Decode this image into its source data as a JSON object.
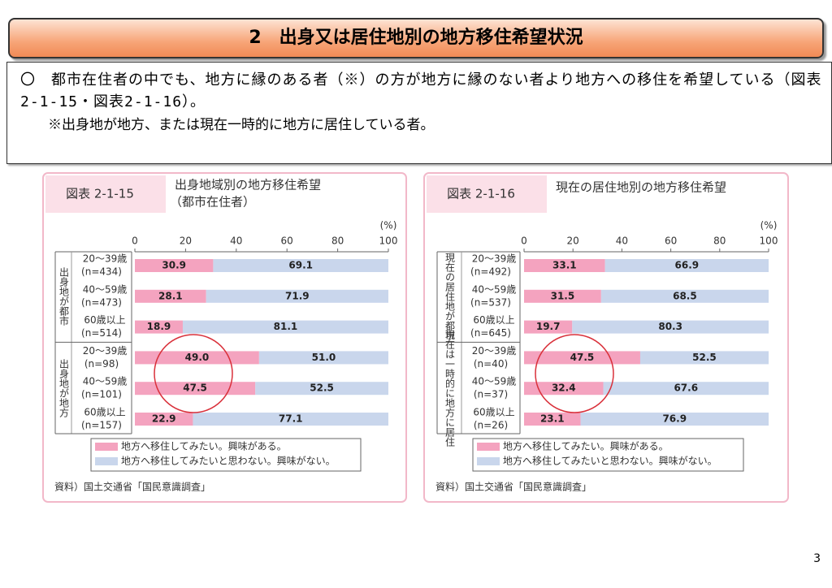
{
  "header": {
    "title": "2　出身又は居住地別の地方移住希望状況"
  },
  "summary": {
    "bullet": "〇　都市在住者の中でも、地方に縁のある者（※）の方が地方に縁のない者より地方への移住を希望している（図表2-1-15・図表2-1-16）。",
    "note": "※出身地が地方、または現在一時的に地方に居住している者。"
  },
  "chart_data": [
    {
      "type": "bar",
      "figure_label": "図表 2-1-15",
      "title": "出身地域別の地方移住希望",
      "subtitle": "（都市在住者）",
      "unit": "(%)",
      "groups": [
        {
          "label": "出身地が都市",
          "categories": [
            {
              "age": "20～39歳",
              "n": "(n=434)"
            },
            {
              "age": "40～59歳",
              "n": "(n=473)"
            },
            {
              "age": "60歳以上",
              "n": "(n=514)"
            }
          ]
        },
        {
          "label": "出身地が地方",
          "categories": [
            {
              "age": "20～39歳",
              "n": "(n=98)"
            },
            {
              "age": "40～59歳",
              "n": "(n=101)"
            },
            {
              "age": "60歳以上",
              "n": "(n=157)"
            }
          ]
        }
      ],
      "series": [
        {
          "name": "地方へ移住してみたい。興味がある。",
          "color": "#f4a3bf",
          "values": [
            30.9,
            28.1,
            18.9,
            49.0,
            47.5,
            22.9
          ],
          "value_labels": [
            "30.9",
            "28.1",
            "18.9",
            "49.0",
            "47.5",
            "22.9"
          ]
        },
        {
          "name": "地方へ移住してみたいと思わない。興味がない。",
          "color": "#c9d6ec",
          "values": [
            69.1,
            71.9,
            81.1,
            51.0,
            52.5,
            77.1
          ],
          "value_labels": [
            "69.1",
            "71.9",
            "81.1",
            "51.0",
            "52.5",
            "77.1"
          ]
        }
      ],
      "xlim": [
        0,
        100
      ],
      "xticks": [
        0,
        20,
        40,
        60,
        80,
        100
      ],
      "stacked": true,
      "orientation": "horizontal",
      "source": "資料）国土交通省「国民意識調査」"
    },
    {
      "type": "bar",
      "figure_label": "図表 2-1-16",
      "title": "現在の居住地別の地方移住希望",
      "unit": "(%)",
      "groups": [
        {
          "label": "現在の居住地が都市",
          "categories": [
            {
              "age": "20～39歳",
              "n": "(n=492)"
            },
            {
              "age": "40～59歳",
              "n": "(n=537)"
            },
            {
              "age": "60歳以上",
              "n": "(n=645)"
            }
          ]
        },
        {
          "label": "現在は一時的に地方に居住",
          "categories": [
            {
              "age": "20～39歳",
              "n": "(n=40)"
            },
            {
              "age": "40～59歳",
              "n": "(n=37)"
            },
            {
              "age": "60歳以上",
              "n": "(n=26)"
            }
          ]
        }
      ],
      "series": [
        {
          "name": "地方へ移住してみたい。興味がある。",
          "color": "#f4a3bf",
          "values": [
            33.1,
            31.5,
            19.7,
            47.5,
            32.4,
            23.1
          ],
          "value_labels": [
            "33.1",
            "31.5",
            "19.7",
            "47.5",
            "32.4",
            "23.1"
          ]
        },
        {
          "name": "地方へ移住してみたいと思わない。興味がない。",
          "color": "#c9d6ec",
          "values": [
            66.9,
            68.5,
            80.3,
            52.5,
            67.6,
            76.9
          ],
          "value_labels": [
            "66.9",
            "68.5",
            "80.3",
            "52.5",
            "67.6",
            "76.9"
          ]
        }
      ],
      "xlim": [
        0,
        100
      ],
      "xticks": [
        0,
        20,
        40,
        60,
        80,
        100
      ],
      "stacked": true,
      "orientation": "horizontal",
      "source": "資料）国土交通省「国民意識調査」"
    }
  ],
  "page_number": "3"
}
